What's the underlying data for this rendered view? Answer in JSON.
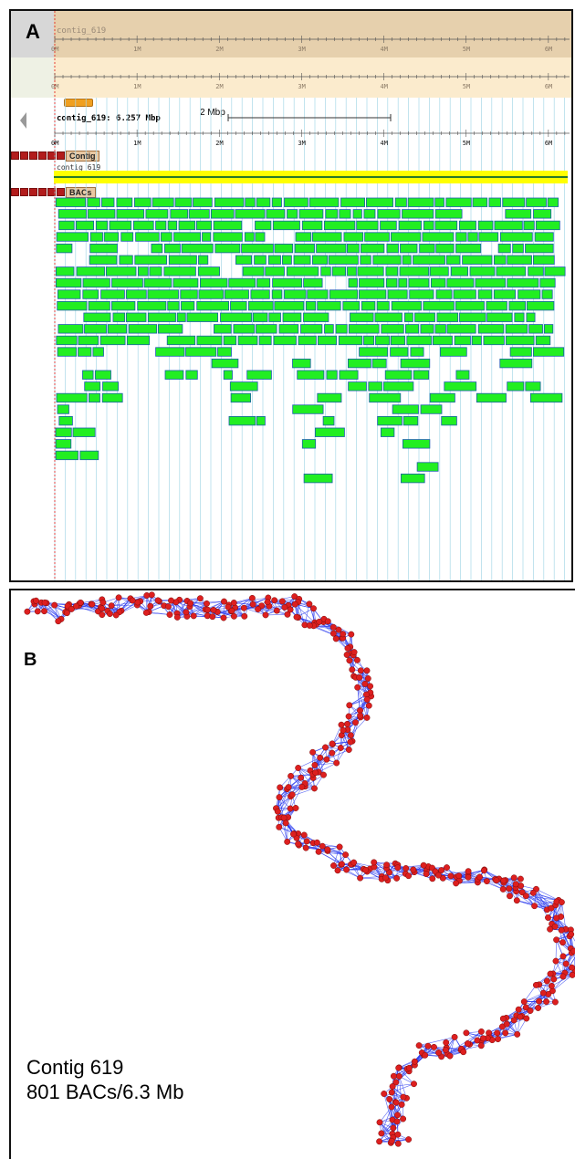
{
  "panel_a": {
    "letter": "A",
    "overview_label": "contig_619",
    "contig_summary": "contig_619: 6.257 Mbp",
    "scale_label": "2 Mbp",
    "ticks": [
      "0M",
      "1M",
      "2M",
      "3M",
      "4M",
      "5M",
      "6M"
    ],
    "contig_track": "Contig",
    "contig_name": "contig_619",
    "bac_track": "BACs",
    "colors": {
      "bac_fill": "#22ee22",
      "bac_stroke": "#1a5fa8",
      "contig_bar": "#ffff00",
      "contig_line": "#2a7a2a",
      "grid": "#a8d8e8"
    }
  },
  "panel_b": {
    "letter": "B",
    "caption_line1": "Contig 619",
    "caption_line2": "801 BACs/6.3 Mb",
    "colors": {
      "node": "#dd1f1f",
      "node_stroke": "#7a0b0b",
      "edge": "#2233ee"
    }
  }
}
